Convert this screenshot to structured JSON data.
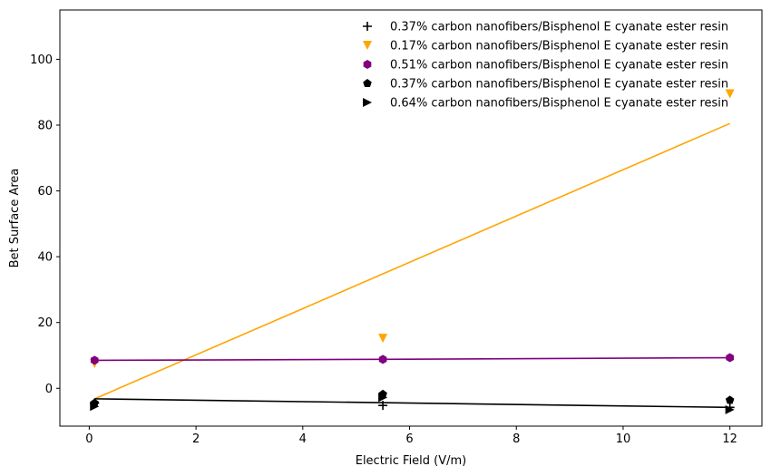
{
  "chart_data": {
    "type": "scatter",
    "xlabel": "Electric Field (V/m)",
    "ylabel": "Bet Surface Area",
    "xlim": [
      -0.55,
      12.6
    ],
    "ylim": [
      -11.5,
      115
    ],
    "xticks": [
      0,
      2,
      4,
      6,
      8,
      10,
      12
    ],
    "yticks": [
      0,
      20,
      40,
      60,
      80,
      100
    ],
    "grid": false,
    "legend_position": "top-right",
    "series": [
      {
        "name": "0.37% carbon nanofibers/Bisphenol E cyanate ester resin",
        "marker": "plus",
        "color": "#000000",
        "x": [
          0.1,
          5.5,
          12.0
        ],
        "y": [
          -4.5,
          -5.2,
          -5.8
        ]
      },
      {
        "name": "0.17% carbon nanofibers/Bisphenol E cyanate ester resin",
        "marker": "triangle-down",
        "color": "#ffa500",
        "x": [
          0.1,
          5.5,
          12.0
        ],
        "y": [
          7.5,
          15.2,
          89.5
        ]
      },
      {
        "name": "0.51% carbon nanofibers/Bisphenol E cyanate ester resin",
        "marker": "hexagon",
        "color": "#800080",
        "x": [
          0.1,
          5.5,
          12.0
        ],
        "y": [
          8.5,
          8.8,
          9.3
        ]
      },
      {
        "name": "0.37% carbon nanofibers/Bisphenol E cyanate ester resin",
        "marker": "pentagon",
        "color": "#000000",
        "x": [
          0.1,
          5.5,
          12.0
        ],
        "y": [
          -4.5,
          -1.8,
          -3.6
        ]
      },
      {
        "name": "0.64% carbon nanofibers/Bisphenol E cyanate ester resin",
        "marker": "triangle-right",
        "color": "#000000",
        "x": [
          0.1,
          5.5,
          12.0
        ],
        "y": [
          -5.5,
          -2.8,
          -6.5
        ]
      }
    ],
    "fit_lines": [
      {
        "color": "#ffa500",
        "x": [
          0.1,
          12.0
        ],
        "y": [
          -3.2,
          80.5
        ]
      },
      {
        "color": "#800080",
        "x": [
          0.1,
          5.5,
          12.0
        ],
        "y": [
          8.5,
          8.8,
          9.3
        ]
      },
      {
        "color": "#000000",
        "x": [
          0.1,
          12.0
        ],
        "y": [
          -3.2,
          -5.8
        ]
      }
    ]
  }
}
